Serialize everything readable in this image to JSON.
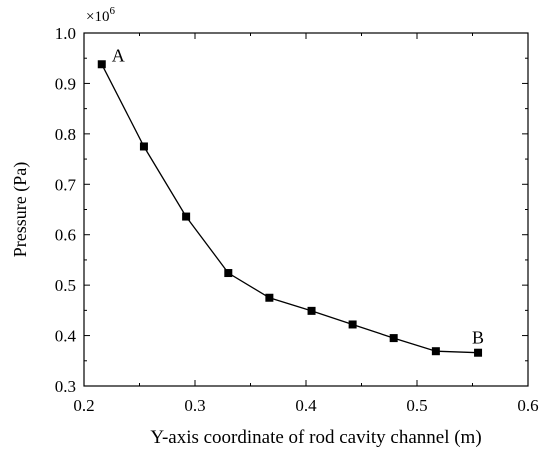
{
  "chart_data": {
    "type": "line",
    "title": "",
    "xlabel": "Y-axis coordinate of rod cavity channel  (m)",
    "ylabel": "Pressure (Pa)",
    "y_multiplier_label": "×10",
    "y_multiplier_exponent": "6",
    "xlim": [
      0.2,
      0.6
    ],
    "ylim": [
      0.3,
      1.0
    ],
    "x_ticks": [
      0.2,
      0.3,
      0.4,
      0.5,
      0.6
    ],
    "x_tick_labels": [
      "0.2",
      "0.3",
      "0.4",
      "0.5",
      "0.6"
    ],
    "y_ticks": [
      0.3,
      0.4,
      0.5,
      0.6,
      0.7,
      0.8,
      0.9,
      1.0
    ],
    "y_tick_labels": [
      "0.3",
      "0.4",
      "0.5",
      "0.6",
      "0.7",
      "0.8",
      "0.9",
      "1.0"
    ],
    "grid": false,
    "legend": "none",
    "series": [
      {
        "marker": "square",
        "color": "#000000",
        "x": [
          0.216,
          0.254,
          0.292,
          0.33,
          0.367,
          0.405,
          0.442,
          0.479,
          0.517,
          0.555
        ],
        "y": [
          0.938,
          0.775,
          0.636,
          0.524,
          0.475,
          0.449,
          0.422,
          0.395,
          0.369,
          0.366
        ]
      }
    ],
    "annotations": [
      {
        "text": "A",
        "x": 0.216,
        "y": 0.938,
        "anchor": "right"
      },
      {
        "text": "B",
        "x": 0.555,
        "y": 0.366,
        "anchor": "above"
      }
    ]
  }
}
